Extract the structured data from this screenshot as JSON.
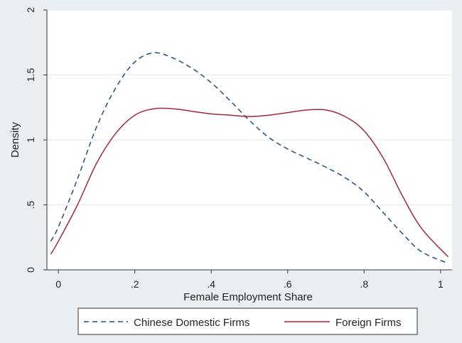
{
  "chart_data": {
    "type": "line",
    "title": "",
    "xlabel": "Female Employment Share",
    "ylabel": "Density",
    "xlim": [
      -0.03,
      1.03
    ],
    "ylim": [
      0,
      2
    ],
    "x_ticks": [
      0,
      0.2,
      0.4,
      0.6,
      0.8,
      1
    ],
    "x_tick_labels": [
      "0",
      ".2",
      ".4",
      ".6",
      ".8",
      "1"
    ],
    "y_ticks": [
      0,
      0.5,
      1,
      1.5,
      2
    ],
    "y_tick_labels": [
      "0",
      ".5",
      "1",
      "1.5",
      "2"
    ],
    "grid": "horizontal",
    "legend_position": "bottom",
    "series": [
      {
        "name": "Chinese Domestic Firms",
        "style": "dashed",
        "color": "#1f4e79",
        "x": [
          -0.02,
          0.0,
          0.05,
          0.1,
          0.15,
          0.2,
          0.25,
          0.3,
          0.35,
          0.4,
          0.45,
          0.5,
          0.55,
          0.6,
          0.65,
          0.7,
          0.75,
          0.8,
          0.85,
          0.9,
          0.95,
          1.02
        ],
        "y": [
          0.22,
          0.33,
          0.7,
          1.1,
          1.4,
          1.6,
          1.67,
          1.63,
          1.55,
          1.44,
          1.3,
          1.15,
          1.02,
          0.93,
          0.86,
          0.79,
          0.71,
          0.6,
          0.44,
          0.28,
          0.14,
          0.05
        ]
      },
      {
        "name": "Foreign Firms",
        "style": "solid",
        "color": "#a0283a",
        "x": [
          -0.02,
          0.0,
          0.05,
          0.1,
          0.15,
          0.2,
          0.25,
          0.3,
          0.35,
          0.4,
          0.45,
          0.5,
          0.55,
          0.6,
          0.65,
          0.7,
          0.75,
          0.8,
          0.85,
          0.9,
          0.95,
          1.02
        ],
        "y": [
          0.12,
          0.22,
          0.5,
          0.82,
          1.05,
          1.19,
          1.24,
          1.24,
          1.22,
          1.2,
          1.19,
          1.18,
          1.19,
          1.21,
          1.23,
          1.23,
          1.18,
          1.07,
          0.86,
          0.57,
          0.32,
          0.1
        ]
      }
    ]
  }
}
